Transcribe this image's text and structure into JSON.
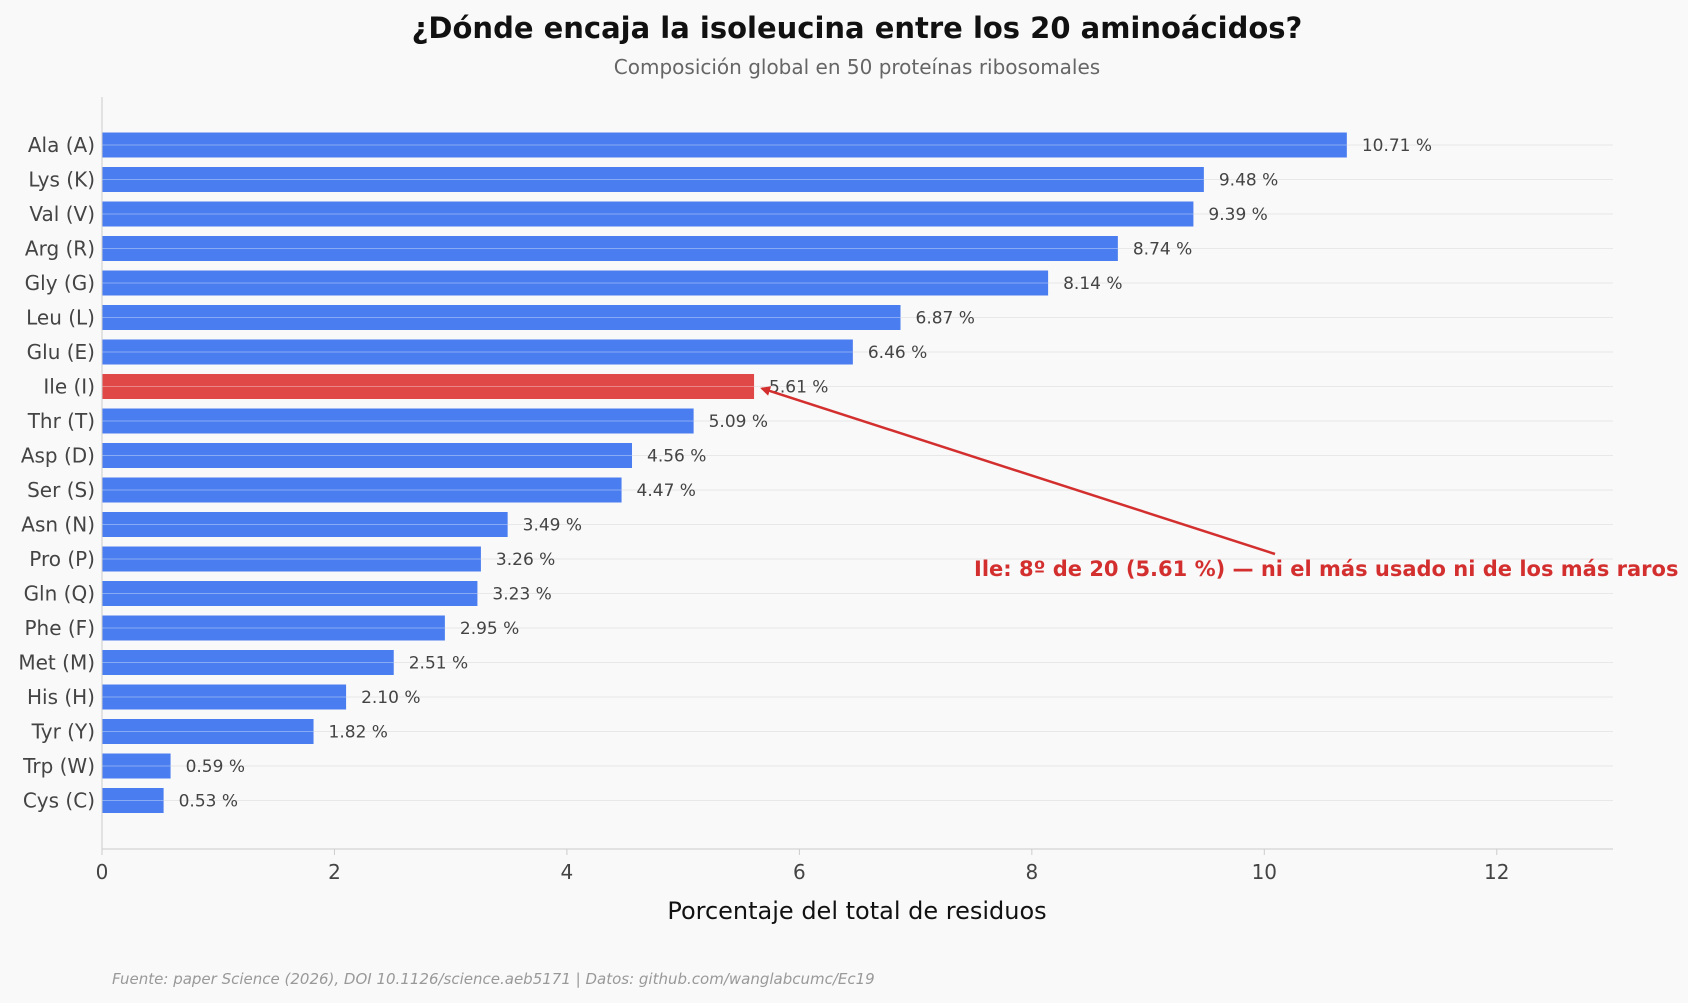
{
  "chart_data": {
    "type": "bar",
    "orientation": "horizontal",
    "title": "¿Dónde encaja la isoleucina entre los 20 aminoácidos?",
    "subtitle": "Composición global en 50 proteínas ribosomales",
    "xlabel": "Porcentaje del total de residuos",
    "ylabel": "",
    "xlim": [
      0,
      13
    ],
    "xticks": [
      0,
      2,
      4,
      6,
      8,
      10,
      12
    ],
    "tick_labels": [
      "0",
      "2",
      "4",
      "6",
      "8",
      "10",
      "12"
    ],
    "grid": "horizontal gridlines",
    "categories": [
      "Ala (A)",
      "Lys (K)",
      "Val (V)",
      "Arg (R)",
      "Gly (G)",
      "Leu (L)",
      "Glu (E)",
      "Ile (I)",
      "Thr (T)",
      "Asp (D)",
      "Ser (S)",
      "Asn (N)",
      "Pro (P)",
      "Gln (Q)",
      "Phe (F)",
      "Met (M)",
      "His (H)",
      "Tyr (Y)",
      "Trp (W)",
      "Cys (C)"
    ],
    "values": [
      10.71,
      9.48,
      9.39,
      8.74,
      8.14,
      6.87,
      6.46,
      5.61,
      5.09,
      4.56,
      4.47,
      3.49,
      3.26,
      3.23,
      2.95,
      2.51,
      2.1,
      1.82,
      0.59,
      0.53
    ],
    "value_labels": [
      "10.71 %",
      "9.48 %",
      "9.39 %",
      "8.74 %",
      "8.14 %",
      "6.87 %",
      "6.46 %",
      "5.61 %",
      "5.09 %",
      "4.56 %",
      "4.47 %",
      "3.49 %",
      "3.26 %",
      "3.23 %",
      "2.95 %",
      "2.51 %",
      "2.10 %",
      "1.82 %",
      "0.59 %",
      "0.53 %"
    ],
    "highlight_category": "Ile (I)",
    "colors": {
      "bar": "#4a7def",
      "highlight": "#e04848",
      "annotation": "#d32f2f",
      "background": "#f9f9f9",
      "gridline": "#e8e8e8",
      "axis": "#cccccc"
    },
    "annotation": {
      "text": "Ile: 8º de 20 (5.61 %) — ni el más usado ni de los más raros",
      "points_to_category": "Ile (I)"
    },
    "source": "Fuente: paper Science (2026), DOI 10.1126/science.aeb5171 | Datos: github.com/wanglabcumc/Ec19"
  }
}
